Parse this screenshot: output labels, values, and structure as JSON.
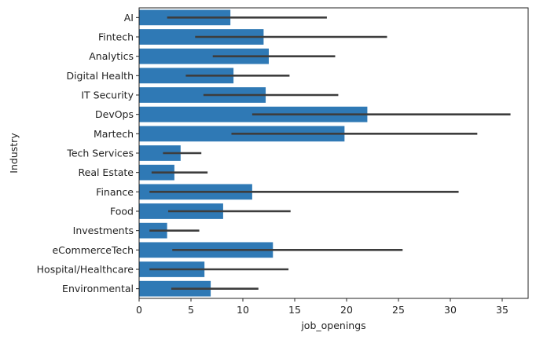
{
  "chart_data": {
    "type": "bar",
    "orientation": "horizontal",
    "xlabel": "job_openings",
    "ylabel": "Industry",
    "xlim": [
      0,
      37.5
    ],
    "xticks": [
      0,
      5,
      10,
      15,
      20,
      25,
      30,
      35
    ],
    "grid": false,
    "bar_color": "#2f79b5",
    "errorbar_color": "#3d3d3d",
    "categories": [
      "AI",
      "Fintech",
      "Analytics",
      "Digital Health",
      "IT Security",
      "DevOps",
      "Martech",
      "Tech Services",
      "Real Estate",
      "Finance",
      "Food",
      "Investments",
      "eCommerceTech",
      "Hospital/Healthcare",
      "Environmental"
    ],
    "values": [
      8.8,
      12.0,
      12.5,
      9.1,
      12.2,
      22.0,
      19.8,
      4.0,
      3.4,
      10.9,
      8.1,
      2.7,
      12.9,
      6.3,
      6.9
    ],
    "error_low": [
      2.7,
      5.4,
      7.1,
      4.5,
      6.2,
      10.9,
      8.9,
      2.3,
      1.2,
      1.0,
      2.8,
      1.0,
      3.2,
      1.0,
      3.1
    ],
    "error_high": [
      18.1,
      23.9,
      18.9,
      14.5,
      19.2,
      35.8,
      32.6,
      6.0,
      6.6,
      30.8,
      14.6,
      5.8,
      25.4,
      14.4,
      11.5
    ]
  }
}
